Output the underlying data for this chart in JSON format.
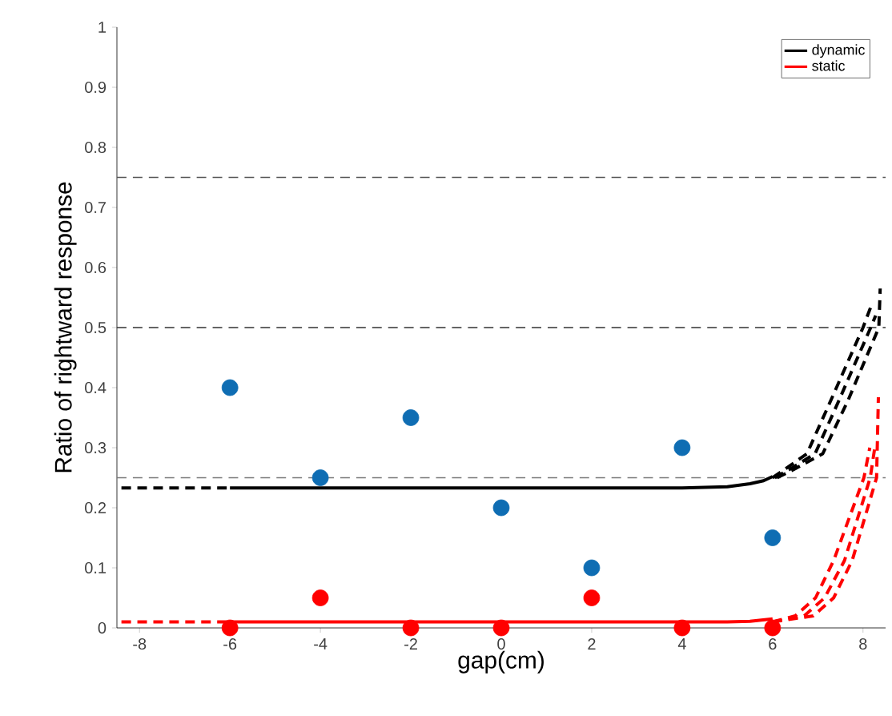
{
  "chart_data": {
    "type": "line",
    "xlabel": "gap(cm)",
    "ylabel": "Ratio of rightward response",
    "xlim": [
      -8.5,
      8.5
    ],
    "ylim": [
      0,
      1
    ],
    "xticks": [
      -8,
      -6,
      -4,
      -2,
      0,
      2,
      4,
      6,
      8
    ],
    "yticks": [
      0,
      0.1,
      0.2,
      0.3,
      0.4,
      0.5,
      0.6,
      0.7,
      0.8,
      0.9,
      1
    ],
    "grid": false,
    "legend": "top right",
    "series": [
      {
        "name": "dynamic",
        "color": "#000000",
        "line_style": "solid",
        "marker": "none",
        "x": [
          -6,
          0,
          4,
          5,
          5.5,
          5.8,
          6
        ],
        "values": [
          0.233,
          0.233,
          0.233,
          0.235,
          0.24,
          0.245,
          0.252
        ]
      },
      {
        "name": "static",
        "color": "#ff0000",
        "line_style": "solid",
        "marker": "none",
        "x": [
          -6,
          0,
          4,
          5,
          5.5,
          6
        ],
        "values": [
          0.01,
          0.01,
          0.01,
          0.01,
          0.011,
          0.015
        ]
      },
      {
        "color": "#000000",
        "line_style": "dashed",
        "marker": "none",
        "x": [
          -8.4,
          -6
        ],
        "values": [
          0.233,
          0.233
        ]
      },
      {
        "color": "#ff0000",
        "line_style": "dashed",
        "marker": "none",
        "x": [
          -8.4,
          -6
        ],
        "values": [
          0.01,
          0.01
        ]
      },
      {
        "color": "#000000",
        "line_style": "dashed",
        "marker": "none",
        "x": [
          6,
          6.29,
          6.76,
          7.29,
          8.0,
          8.2
        ],
        "values": [
          0.25,
          0.265,
          0.29,
          0.379,
          0.5,
          0.54
        ]
      },
      {
        "color": "#000000",
        "line_style": "dashed",
        "marker": "none",
        "x": [
          6.05,
          6.4,
          6.94,
          7.47,
          8.17,
          8.28
        ],
        "values": [
          0.25,
          0.265,
          0.29,
          0.379,
          0.5,
          0.52
        ]
      },
      {
        "color": "#000000",
        "line_style": "dashed",
        "marker": "none",
        "x": [
          6.1,
          6.5,
          7.11,
          7.67,
          8.35,
          8.38
        ],
        "values": [
          0.25,
          0.265,
          0.29,
          0.379,
          0.5,
          0.565
        ]
      },
      {
        "color": "#ff0000",
        "line_style": "dashed",
        "marker": "none",
        "x": [
          6,
          6.5,
          6.95,
          7.35,
          8.02,
          8.15
        ],
        "values": [
          0.01,
          0.02,
          0.05,
          0.112,
          0.25,
          0.3
        ]
      },
      {
        "color": "#ff0000",
        "line_style": "dashed",
        "marker": "none",
        "x": [
          6,
          6.7,
          7.15,
          7.59,
          8.16,
          8.26
        ],
        "values": [
          0.01,
          0.02,
          0.05,
          0.112,
          0.25,
          0.3
        ]
      },
      {
        "color": "#ff0000",
        "line_style": "dashed",
        "marker": "none",
        "x": [
          6,
          6.9,
          7.35,
          7.76,
          8.3,
          8.34
        ],
        "values": [
          0.01,
          0.02,
          0.05,
          0.112,
          0.25,
          0.384
        ]
      },
      {
        "type": "scatter",
        "marker": "circle",
        "color": "#0f6db3",
        "x": [
          -6,
          -4,
          -2,
          0,
          2,
          4,
          6
        ],
        "values": [
          0.4,
          0.25,
          0.35,
          0.2,
          0.1,
          0.3,
          0.15
        ]
      },
      {
        "type": "scatter",
        "marker": "circle",
        "color": "#ff0000",
        "x": [
          -6,
          -4,
          -2,
          0,
          2,
          4,
          6
        ],
        "values": [
          0,
          0.05,
          0,
          0,
          0.05,
          0,
          0
        ]
      }
    ],
    "ref_lines": [
      {
        "axis": "y",
        "value": 0.25,
        "color": "#777777",
        "line_style": "dashed"
      },
      {
        "axis": "y",
        "value": 0.5,
        "color": "#333333",
        "line_style": "dashed"
      },
      {
        "axis": "y",
        "value": 0.75,
        "color": "#555555",
        "line_style": "dashed"
      }
    ]
  }
}
